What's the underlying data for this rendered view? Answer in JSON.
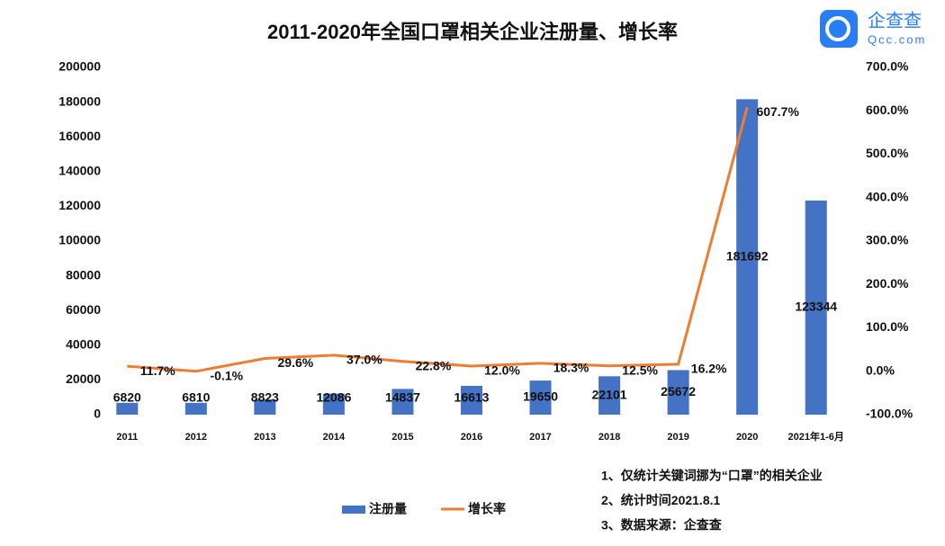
{
  "chart_data": {
    "type": "bar",
    "title": "2011-2020年全国口罩相关企业注册量、增长率",
    "logo": {
      "name": "企查查",
      "domain": "Qcc.com"
    },
    "categories": [
      "2011",
      "2012",
      "2013",
      "2014",
      "2015",
      "2016",
      "2017",
      "2018",
      "2019",
      "2020",
      "2021年1-6月"
    ],
    "series": [
      {
        "name": "注册量",
        "type": "bar",
        "color": "#4472c4",
        "values": [
          6820,
          6810,
          8823,
          12086,
          14837,
          16613,
          19650,
          22101,
          25672,
          181692,
          123344
        ]
      },
      {
        "name": "增长率",
        "type": "line",
        "axis": "y2",
        "color": "#ed7d31",
        "values": [
          11.7,
          -0.1,
          29.6,
          37.0,
          22.8,
          12.0,
          18.3,
          12.5,
          16.2,
          607.7,
          null
        ],
        "value_labels": [
          "11.7%",
          "-0.1%",
          "29.6%",
          "37.0%",
          "22.8%",
          "12.0%",
          "18.3%",
          "12.5%",
          "16.2%",
          "607.7%",
          null
        ]
      }
    ],
    "ylim": [
      0,
      200000
    ],
    "yticks": [
      0,
      20000,
      40000,
      60000,
      80000,
      100000,
      120000,
      140000,
      160000,
      180000,
      200000
    ],
    "y2lim": [
      -100,
      700
    ],
    "y2ticks": [
      {
        "value": -100,
        "label": "-100.0%"
      },
      {
        "value": 0,
        "label": "0.0%"
      },
      {
        "value": 100,
        "label": "100.0%"
      },
      {
        "value": 200,
        "label": "200.0%"
      },
      {
        "value": 300,
        "label": "300.0%"
      },
      {
        "value": 400,
        "label": "400.0%"
      },
      {
        "value": 500,
        "label": "500.0%"
      },
      {
        "value": 600,
        "label": "600.0%"
      },
      {
        "value": 700,
        "label": "700.0%"
      }
    ],
    "grid": false,
    "legend": "bottom",
    "notes": [
      "1、仅统计关键词挪为“口罩”的相关企业",
      "2、统计时间2021.8.1",
      "3、数据来源：企查查"
    ]
  }
}
